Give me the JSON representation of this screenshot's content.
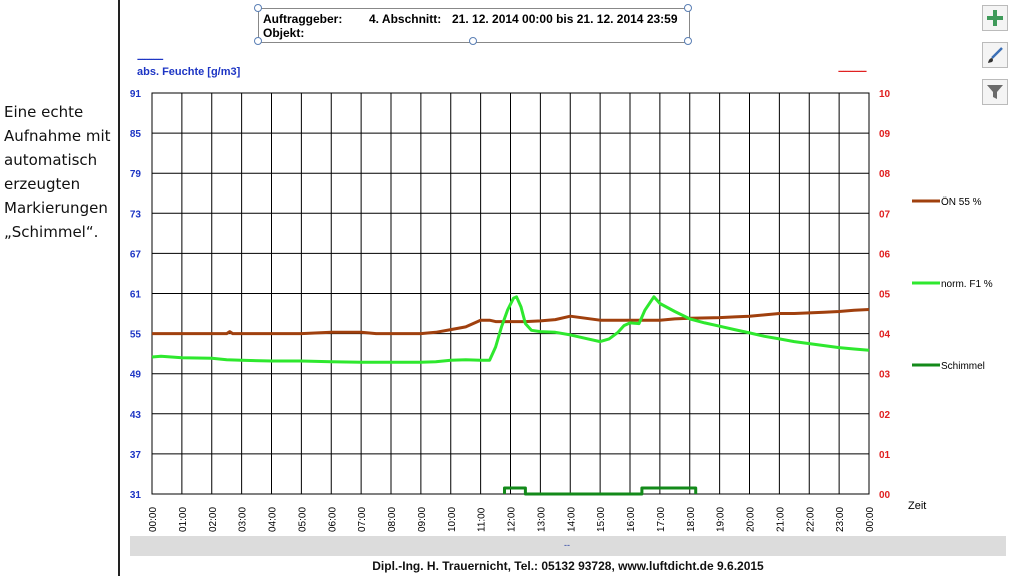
{
  "caption": {
    "lines": [
      "Eine echte",
      "Aufnahme mit",
      "automatisch",
      "erzeugten",
      "Markierungen",
      "„Schimmel“."
    ]
  },
  "header": {
    "label1": "Auftraggeber:",
    "section": "4. Abschnitt:",
    "period": "21. 12. 2014 00:00 bis 21. 12. 2014 23:59",
    "label2": "Objekt:"
  },
  "toolbar": {
    "add_icon": "plus-icon",
    "brush_icon": "brush-icon",
    "filter_icon": "filter-icon"
  },
  "chart_data": {
    "type": "line",
    "left_axis": {
      "label": "abs. Feuchte [g/m3]",
      "dashes": "-----------",
      "ticks": [
        "91",
        "85",
        "79",
        "73",
        "67",
        "61",
        "55",
        "49",
        "43",
        "37",
        "31"
      ],
      "range": [
        31,
        91
      ],
      "color": "#1d35c4"
    },
    "right_axis": {
      "dashes": "------------",
      "ticks": [
        "10",
        "09",
        "08",
        "07",
        "06",
        "05",
        "04",
        "03",
        "02",
        "01",
        "00"
      ],
      "range": [
        0,
        10
      ],
      "color": "#e02020"
    },
    "x_axis": {
      "label": "Zeit",
      "ticks": [
        "00:00",
        "01:00",
        "02:00",
        "03:00",
        "04:00",
        "05:00",
        "06:00",
        "07:00",
        "08:00",
        "09:00",
        "10:00",
        "11:00",
        "12:00",
        "13:00",
        "14:00",
        "15:00",
        "16:00",
        "17:00",
        "18:00",
        "19:00",
        "20:00",
        "21:00",
        "22:00",
        "23:00",
        "00:00"
      ],
      "range_hours": [
        0,
        24
      ]
    },
    "grid": true,
    "legend_position": "right",
    "series": [
      {
        "name": "ÖN 55 %",
        "color": "#a0400e",
        "axis": "left",
        "points": [
          [
            0,
            55.0
          ],
          [
            2.5,
            55.0
          ],
          [
            2.6,
            55.3
          ],
          [
            2.7,
            55.0
          ],
          [
            5,
            55.0
          ],
          [
            6,
            55.2
          ],
          [
            7,
            55.2
          ],
          [
            7.5,
            55.0
          ],
          [
            9,
            55.0
          ],
          [
            9.5,
            55.2
          ],
          [
            10,
            55.6
          ],
          [
            10.5,
            56.0
          ],
          [
            11,
            57.0
          ],
          [
            11.3,
            57.0
          ],
          [
            11.5,
            56.8
          ],
          [
            12,
            56.8
          ],
          [
            12.5,
            56.8
          ],
          [
            13,
            56.9
          ],
          [
            13.5,
            57.1
          ],
          [
            14,
            57.6
          ],
          [
            14.5,
            57.3
          ],
          [
            15,
            57.0
          ],
          [
            16,
            57.0
          ],
          [
            17,
            57.0
          ],
          [
            17.5,
            57.2
          ],
          [
            18,
            57.3
          ],
          [
            19,
            57.4
          ],
          [
            19.5,
            57.5
          ],
          [
            20,
            57.6
          ],
          [
            20.5,
            57.8
          ],
          [
            21,
            58.0
          ],
          [
            21.5,
            58.0
          ],
          [
            22,
            58.1
          ],
          [
            22.5,
            58.2
          ],
          [
            23,
            58.3
          ],
          [
            23.5,
            58.5
          ],
          [
            24,
            58.6
          ]
        ]
      },
      {
        "name": "norm. F1 %",
        "color": "#2ee82e",
        "axis": "left",
        "points": [
          [
            0,
            51.5
          ],
          [
            0.3,
            51.6
          ],
          [
            1,
            51.4
          ],
          [
            2,
            51.3
          ],
          [
            2.5,
            51.1
          ],
          [
            3,
            51.0
          ],
          [
            4,
            50.9
          ],
          [
            5,
            50.9
          ],
          [
            6,
            50.8
          ],
          [
            7,
            50.7
          ],
          [
            8,
            50.7
          ],
          [
            9,
            50.7
          ],
          [
            9.5,
            50.8
          ],
          [
            10,
            51.0
          ],
          [
            10.5,
            51.1
          ],
          [
            11,
            51.0
          ],
          [
            11.3,
            51.0
          ],
          [
            11.5,
            53.0
          ],
          [
            11.7,
            56.0
          ],
          [
            11.9,
            58.5
          ],
          [
            12.1,
            60.3
          ],
          [
            12.2,
            60.5
          ],
          [
            12.35,
            59.0
          ],
          [
            12.5,
            56.5
          ],
          [
            12.7,
            55.5
          ],
          [
            13,
            55.3
          ],
          [
            13.5,
            55.2
          ],
          [
            14,
            54.8
          ],
          [
            14.5,
            54.3
          ],
          [
            15,
            53.8
          ],
          [
            15.3,
            54.2
          ],
          [
            15.6,
            55.2
          ],
          [
            15.8,
            56.2
          ],
          [
            16,
            56.6
          ],
          [
            16.3,
            56.5
          ],
          [
            16.5,
            58.5
          ],
          [
            16.8,
            60.5
          ],
          [
            17,
            59.5
          ],
          [
            17.5,
            58.3
          ],
          [
            18,
            57.2
          ],
          [
            18.5,
            56.6
          ],
          [
            19,
            56.1
          ],
          [
            19.5,
            55.6
          ],
          [
            20,
            55.1
          ],
          [
            20.5,
            54.6
          ],
          [
            21,
            54.2
          ],
          [
            21.5,
            53.8
          ],
          [
            22,
            53.5
          ],
          [
            22.5,
            53.2
          ],
          [
            23,
            52.9
          ],
          [
            23.5,
            52.7
          ],
          [
            24,
            52.5
          ]
        ]
      },
      {
        "name": "Schimmel",
        "color": "#138a1a",
        "axis": "right",
        "points": [
          [
            11.8,
            0
          ],
          [
            11.8,
            0.15
          ],
          [
            12.5,
            0.15
          ],
          [
            12.5,
            0
          ],
          [
            16.4,
            0
          ],
          [
            16.4,
            0.15
          ],
          [
            18.2,
            0.15
          ],
          [
            18.2,
            0
          ]
        ]
      }
    ]
  },
  "bottom_bar": {
    "text": "--"
  },
  "footer": {
    "text": "Dipl.-Ing. H. Trauernicht, Tel.: 05132 93728, www.luftdicht.de 9.6.2015"
  }
}
